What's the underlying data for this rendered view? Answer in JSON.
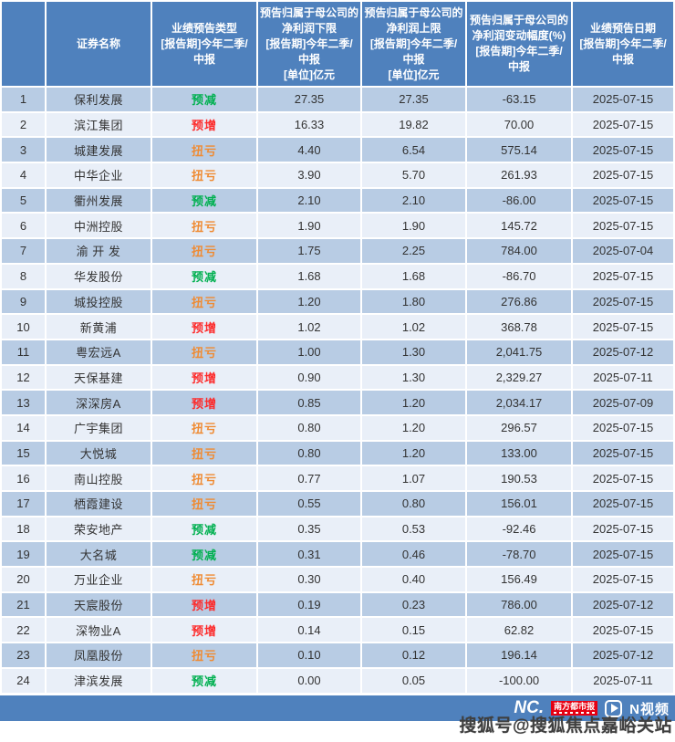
{
  "chart_data": {
    "type": "table",
    "columns": [
      "",
      "证券名称",
      "业绩预告类型\n[报告期]今年二季/\n中报",
      "预告归属于母公司的\n净利润下限\n[报告期]今年二季/\n中报\n[单位]亿元",
      "预告归属于母公司的\n净利润上限\n[报告期]今年二季/\n中报\n[单位]亿元",
      "预告归属于母公司的\n净利润变动幅度(%)\n[报告期]今年二季/\n中报",
      "业绩预告日期\n[报告期]今年二季/\n中报"
    ],
    "rows": [
      [
        "1",
        "保利发展",
        "预减",
        "27.35",
        "27.35",
        "-63.15",
        "2025-07-15"
      ],
      [
        "2",
        "滨江集团",
        "预增",
        "16.33",
        "19.82",
        "70.00",
        "2025-07-15"
      ],
      [
        "3",
        "城建发展",
        "扭亏",
        "4.40",
        "6.54",
        "575.14",
        "2025-07-15"
      ],
      [
        "4",
        "中华企业",
        "扭亏",
        "3.90",
        "5.70",
        "261.93",
        "2025-07-15"
      ],
      [
        "5",
        "衢州发展",
        "预减",
        "2.10",
        "2.10",
        "-86.00",
        "2025-07-15"
      ],
      [
        "6",
        "中洲控股",
        "扭亏",
        "1.90",
        "1.90",
        "145.72",
        "2025-07-15"
      ],
      [
        "7",
        "渝 开 发",
        "扭亏",
        "1.75",
        "2.25",
        "784.00",
        "2025-07-04"
      ],
      [
        "8",
        "华发股份",
        "预减",
        "1.68",
        "1.68",
        "-86.70",
        "2025-07-15"
      ],
      [
        "9",
        "城投控股",
        "扭亏",
        "1.20",
        "1.80",
        "276.86",
        "2025-07-15"
      ],
      [
        "10",
        "新黄浦",
        "预增",
        "1.02",
        "1.02",
        "368.78",
        "2025-07-15"
      ],
      [
        "11",
        "粤宏远A",
        "扭亏",
        "1.00",
        "1.30",
        "2,041.75",
        "2025-07-12"
      ],
      [
        "12",
        "天保基建",
        "预增",
        "0.90",
        "1.30",
        "2,329.27",
        "2025-07-11"
      ],
      [
        "13",
        "深深房A",
        "预增",
        "0.85",
        "1.20",
        "2,034.17",
        "2025-07-09"
      ],
      [
        "14",
        "广宇集团",
        "扭亏",
        "0.80",
        "1.20",
        "296.57",
        "2025-07-15"
      ],
      [
        "15",
        "大悦城",
        "扭亏",
        "0.80",
        "1.20",
        "133.00",
        "2025-07-15"
      ],
      [
        "16",
        "南山控股",
        "扭亏",
        "0.77",
        "1.07",
        "190.53",
        "2025-07-15"
      ],
      [
        "17",
        "栖霞建设",
        "扭亏",
        "0.55",
        "0.80",
        "156.01",
        "2025-07-15"
      ],
      [
        "18",
        "荣安地产",
        "预减",
        "0.35",
        "0.53",
        "-92.46",
        "2025-07-15"
      ],
      [
        "19",
        "大名城",
        "预减",
        "0.31",
        "0.46",
        "-78.70",
        "2025-07-15"
      ],
      [
        "20",
        "万业企业",
        "扭亏",
        "0.30",
        "0.40",
        "156.49",
        "2025-07-15"
      ],
      [
        "21",
        "天宸股份",
        "预增",
        "0.19",
        "0.23",
        "786.00",
        "2025-07-12"
      ],
      [
        "22",
        "深物业A",
        "预增",
        "0.14",
        "0.15",
        "62.82",
        "2025-07-15"
      ],
      [
        "23",
        "凤凰股份",
        "扭亏",
        "0.10",
        "0.12",
        "196.14",
        "2025-07-12"
      ],
      [
        "24",
        "津滨发展",
        "预减",
        "0.00",
        "0.05",
        "-100.00",
        "2025-07-11"
      ]
    ],
    "type_colors": {
      "预减": "#00b050",
      "预增": "#fd2b2b",
      "扭亏": "#ef8b33"
    },
    "layout_hints": {
      "banding_odd": "#b8cce4",
      "banding_even": "#e9eff8",
      "header_bg": "#4f81bd"
    }
  },
  "colors": {
    "header_bg": "#4f81bd",
    "row_odd": "#b8cce4",
    "row_even": "#e9eff8",
    "footer_bg": "#4f81bd",
    "badge_red": "#e60012"
  },
  "footer": {
    "nandu_logo": "NC.",
    "nandu_badge_text": "南方都市报",
    "nvideo_label": "N视频"
  },
  "watermark": "搜狐号@搜狐焦点嘉峪关站"
}
